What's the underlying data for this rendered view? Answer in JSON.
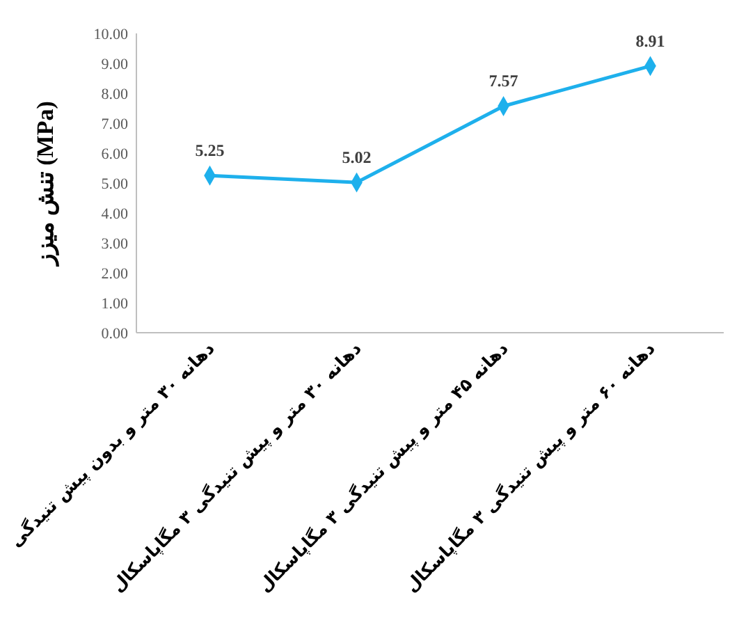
{
  "chart_data": {
    "type": "line",
    "ylabel": "تنش میزز (MPa)",
    "categories": [
      "دهانه ۳۰ متر و بدون پیش تنیدگی",
      "دهانه ۳۰ متر و پیش تنیدگی ۳ مگاپاسکال",
      "دهانه ۴۵ متر و پیش تنیدگی ۳ مگاپاسکال",
      "دهانه ۶۰ متر و پیش تنیدگی ۳ مگاپاسکال"
    ],
    "series": [
      {
        "color": "#1eb0ec",
        "values": [
          5.25,
          5.02,
          7.57,
          8.91
        ]
      }
    ],
    "ylim": [
      0,
      10
    ],
    "yticks": [
      {
        "value": 0,
        "label": "0.00"
      },
      {
        "value": 1,
        "label": "1.00"
      },
      {
        "value": 2,
        "label": "2.00"
      },
      {
        "value": 3,
        "label": "3.00"
      },
      {
        "value": 4,
        "label": "4.00"
      },
      {
        "value": 5,
        "label": "5.00"
      },
      {
        "value": 6,
        "label": "6.00"
      },
      {
        "value": 7,
        "label": "7.00"
      },
      {
        "value": 8,
        "label": "8.00"
      },
      {
        "value": 9,
        "label": "9.00"
      },
      {
        "value": 10,
        "label": "10.00"
      }
    ],
    "marker": "diamond",
    "data_labels": true
  }
}
